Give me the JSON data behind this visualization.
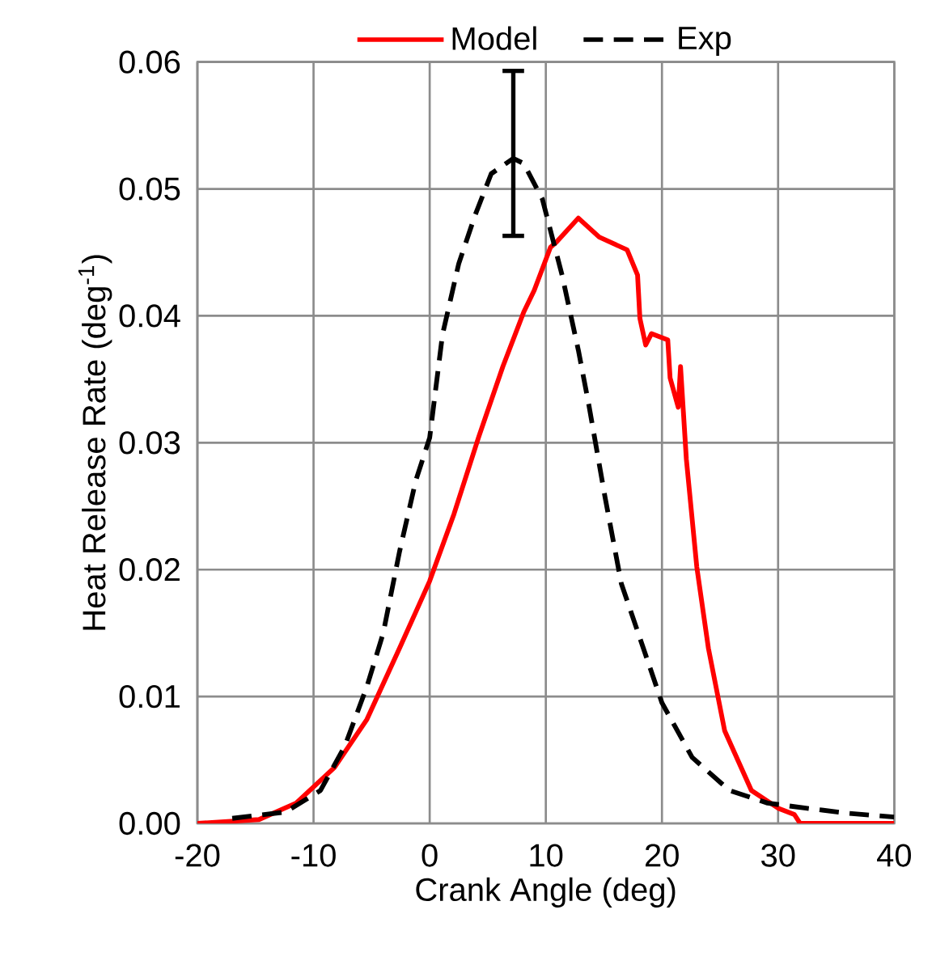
{
  "chart_data": {
    "type": "line",
    "xlabel": "Crank Angle (deg)",
    "ylabel": "Heat Release Rate (deg$^{-1}$)",
    "xlim": [
      -20,
      40
    ],
    "ylim": [
      0,
      0.06
    ],
    "xticks": [
      -20,
      -10,
      0,
      10,
      20,
      30,
      40
    ],
    "yticks": [
      {
        "value": 0,
        "label": "0.00"
      },
      {
        "value": 0.01,
        "label": "0.01"
      },
      {
        "value": 0.02,
        "label": "0.02"
      },
      {
        "value": 0.03,
        "label": "0.03"
      },
      {
        "value": 0.04,
        "label": "0.04"
      },
      {
        "value": 0.05,
        "label": "0.05"
      },
      {
        "value": 0.06,
        "label": "0.06"
      }
    ],
    "grid": true,
    "legend": "top",
    "marker": "none",
    "series": [
      {
        "name": "Model",
        "color": "#ff0000",
        "line_style": "solid",
        "x": [
          -20,
          -14.7,
          -11.5,
          -8.2,
          -5.4,
          -2.6,
          0,
          2.1,
          4.2,
          6.3,
          8.1,
          9.0,
          10.4,
          10.9,
          12.8,
          14.6,
          17.0,
          17.9,
          18.1,
          18.6,
          19.1,
          20.5,
          20.7,
          21.4,
          21.6,
          22.1,
          23.0,
          24.0,
          25.4,
          27.7,
          30.0,
          31.4,
          31.9,
          40
        ],
        "values": [
          0,
          0.0003,
          0.0016,
          0.0044,
          0.0082,
          0.0138,
          0.0191,
          0.0244,
          0.0304,
          0.036,
          0.0403,
          0.042,
          0.0454,
          0.0458,
          0.0477,
          0.0462,
          0.0452,
          0.0432,
          0.0398,
          0.0377,
          0.0386,
          0.0381,
          0.0351,
          0.0328,
          0.036,
          0.0287,
          0.0202,
          0.0138,
          0.0073,
          0.0026,
          0.0012,
          0.0007,
          0,
          0
        ]
      },
      {
        "name": "Exp",
        "color": "#000000",
        "line_style": "dashed",
        "x": [
          -17,
          -12.4,
          -9.4,
          -7.3,
          -5.4,
          -4.0,
          -2.6,
          -1.2,
          0,
          1.1,
          2.5,
          3.9,
          5.3,
          7.2,
          8.1,
          9.7,
          11.4,
          12.8,
          13.7,
          15.1,
          16.5,
          18.4,
          20.0,
          22.6,
          25.8,
          29.1,
          32.4,
          36,
          40
        ],
        "values": [
          0.0004,
          0.0009,
          0.0026,
          0.0061,
          0.0108,
          0.015,
          0.0214,
          0.027,
          0.0304,
          0.0385,
          0.0441,
          0.0479,
          0.0512,
          0.0524,
          0.052,
          0.0492,
          0.0432,
          0.0373,
          0.033,
          0.0257,
          0.0189,
          0.0138,
          0.0095,
          0.0052,
          0.0026,
          0.0016,
          0.0012,
          0.0008,
          0.0005
        ],
        "errors": [
          null,
          null,
          null,
          null,
          null,
          null,
          null,
          null,
          null,
          null,
          null,
          null,
          null,
          [
            0.0463,
            0.0593
          ],
          null,
          null,
          null,
          null,
          null,
          null,
          null,
          null,
          null,
          null,
          null,
          null,
          null,
          null,
          null
        ]
      }
    ]
  }
}
